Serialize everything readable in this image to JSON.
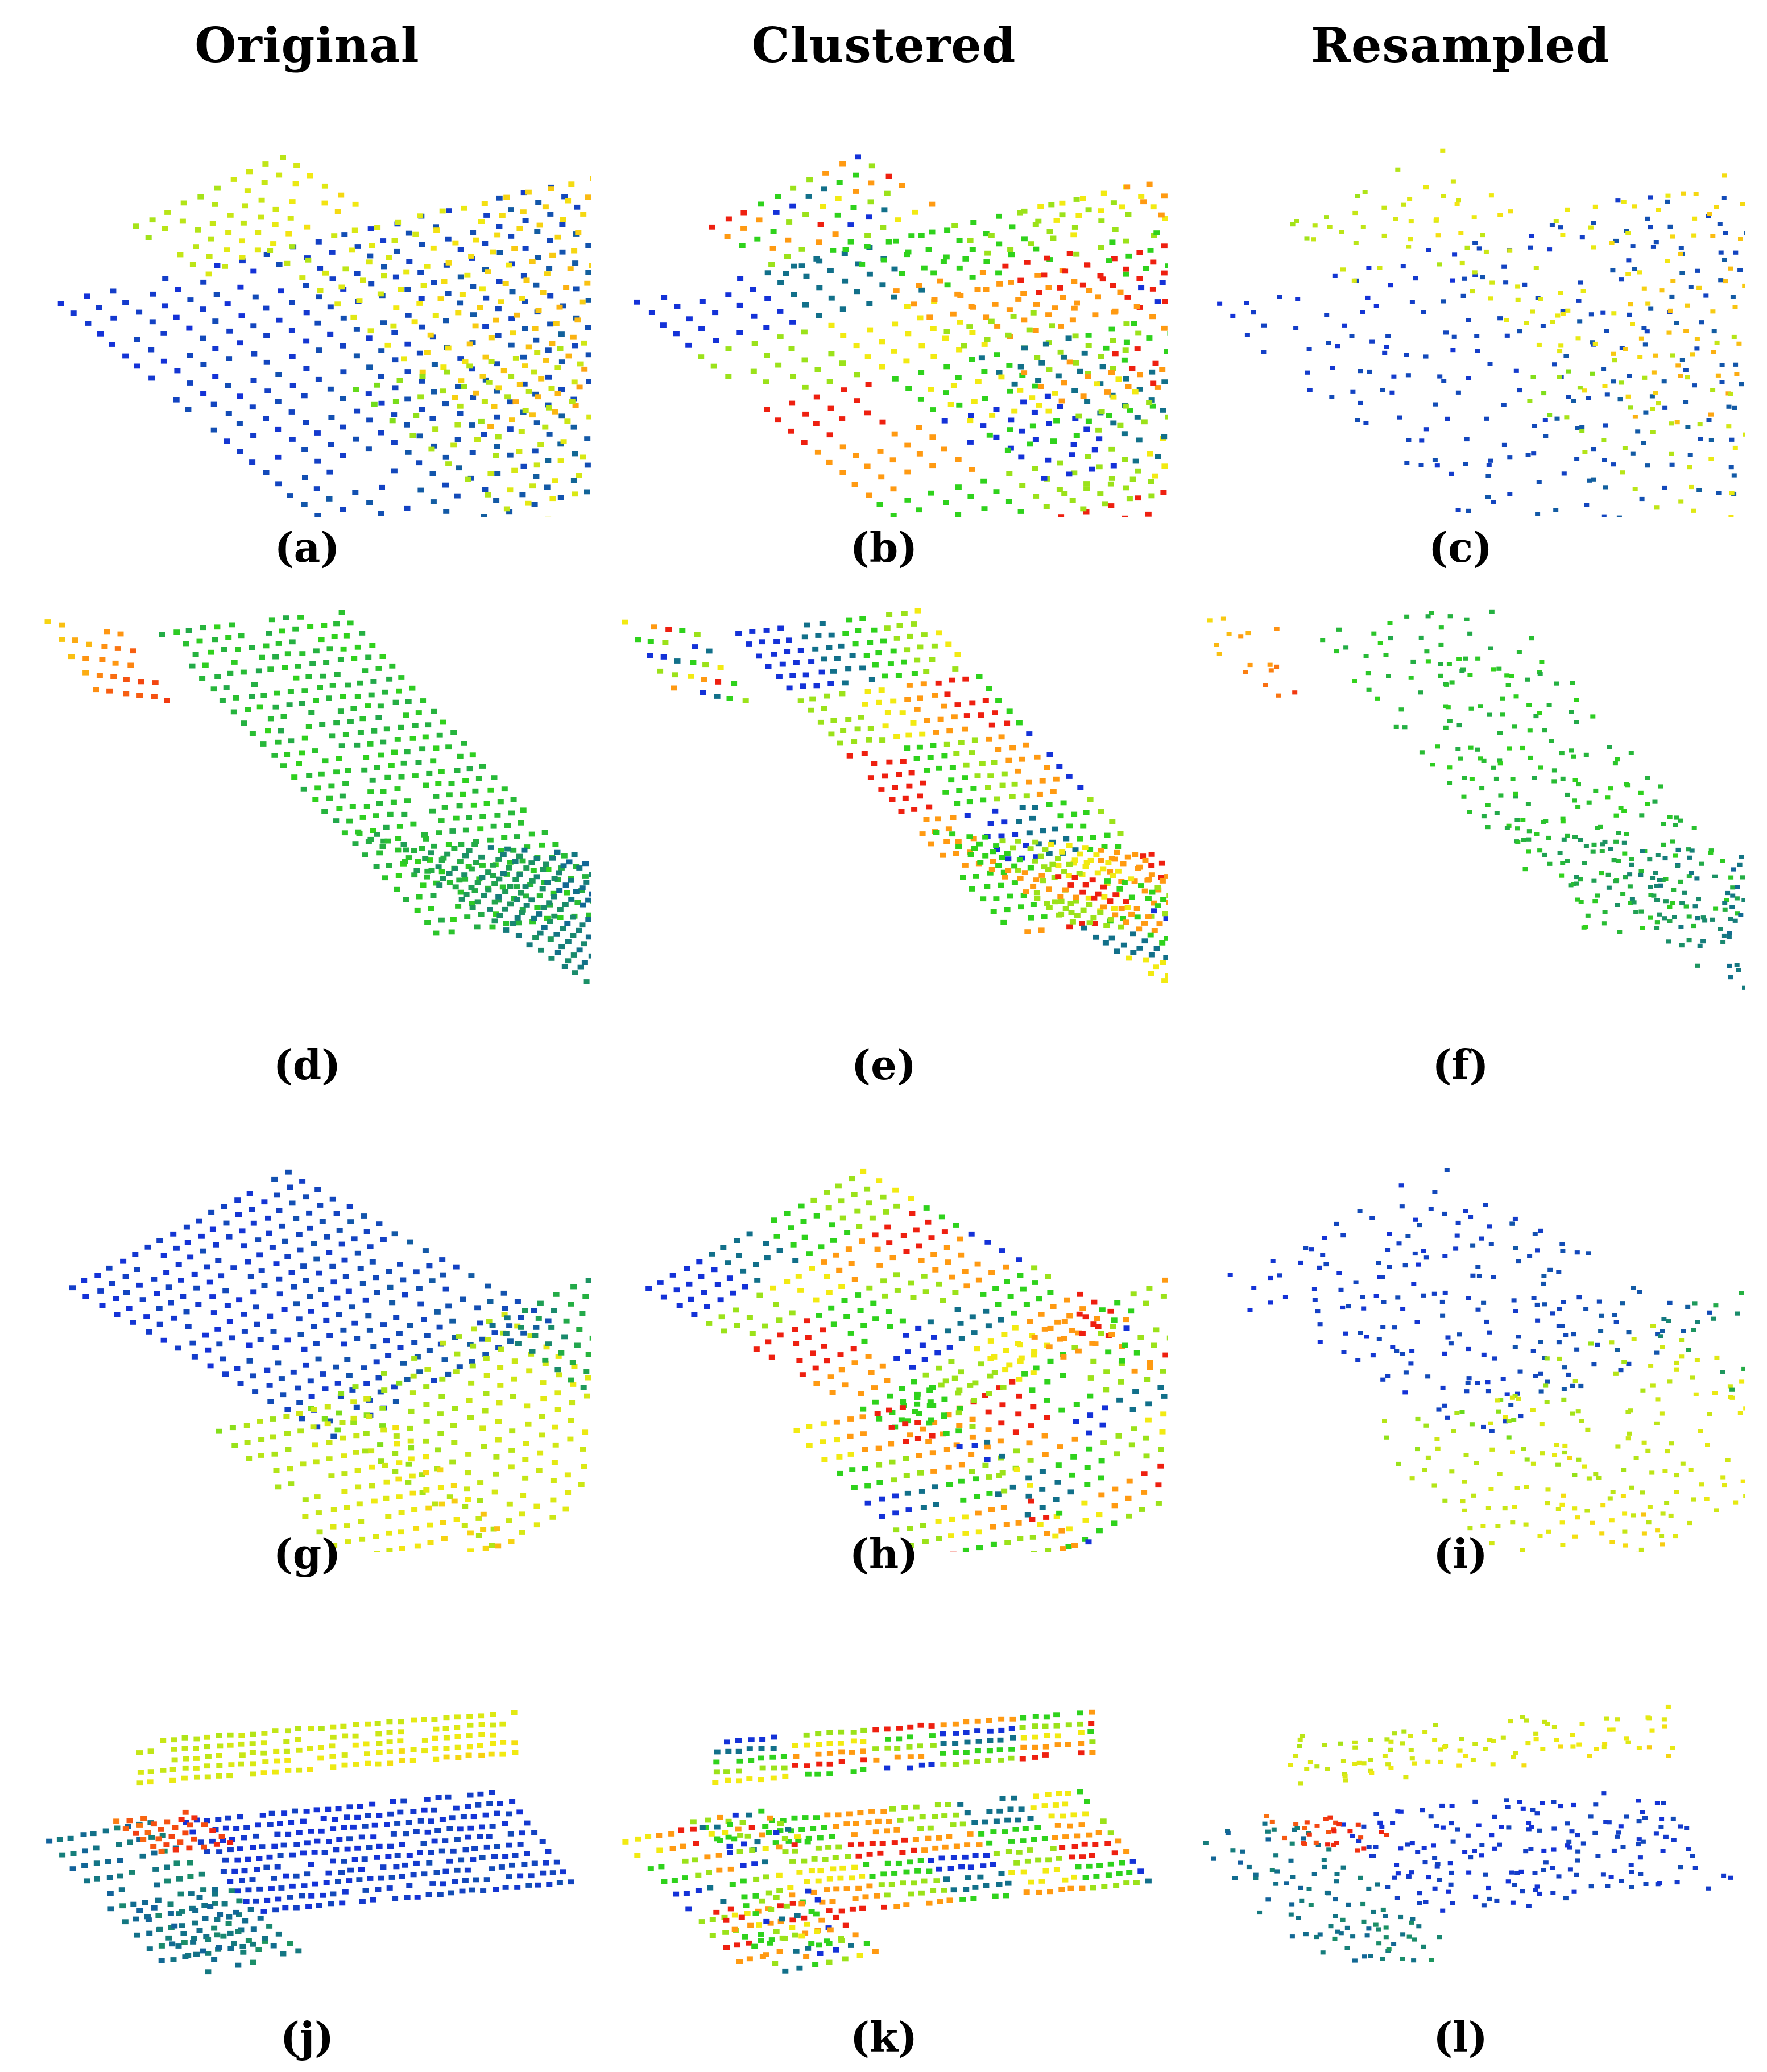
{
  "columns": [
    "Original",
    "Clustered",
    "Resampled"
  ],
  "panels": [
    {
      "label": "(a)",
      "scene": "roof",
      "variant": "original"
    },
    {
      "label": "(b)",
      "scene": "roof",
      "variant": "clustered"
    },
    {
      "label": "(c)",
      "scene": "roof",
      "variant": "resampled"
    },
    {
      "label": "(d)",
      "scene": "slab",
      "variant": "original"
    },
    {
      "label": "(e)",
      "scene": "slab",
      "variant": "clustered"
    },
    {
      "label": "(f)",
      "scene": "slab",
      "variant": "resampled"
    },
    {
      "label": "(g)",
      "scene": "gable",
      "variant": "original"
    },
    {
      "label": "(h)",
      "scene": "gable",
      "variant": "clustered"
    },
    {
      "label": "(i)",
      "scene": "gable",
      "variant": "resampled"
    },
    {
      "label": "(j)",
      "scene": "tower",
      "variant": "original"
    },
    {
      "label": "(k)",
      "scene": "tower",
      "variant": "clustered"
    },
    {
      "label": "(l)",
      "scene": "tower",
      "variant": "resampled"
    }
  ],
  "palette": {
    "blue": "#1432d8",
    "teal": "#12708a",
    "green": "#2fd21c",
    "lime": "#9be21a",
    "yellow": "#f2ea12",
    "orange": "#ff9a12",
    "red": "#ee2010"
  }
}
